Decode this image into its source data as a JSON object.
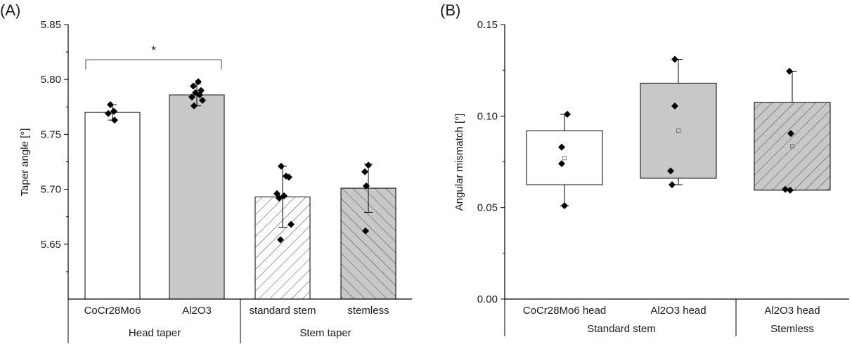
{
  "chart_data": [
    {
      "panel_label": "(A)",
      "type": "bar",
      "ylabel": "Taper angle [°]",
      "ylim": [
        5.6,
        5.85
      ],
      "yticks": [
        "5.65",
        "5.70",
        "5.75",
        "5.80",
        "5.85"
      ],
      "categories": [
        "CoCr28Mo6",
        "Al2O3",
        "standard stem",
        "stemless"
      ],
      "groups": [
        "Head taper",
        "Stem taper"
      ],
      "bars": [
        {
          "category": "CoCr28Mo6",
          "group": "Head taper",
          "value": 5.77,
          "sd": 0.007,
          "fill": "#ffffff",
          "pattern": "none",
          "points": [
            5.777,
            5.771,
            5.769,
            5.763
          ]
        },
        {
          "category": "Al2O3",
          "group": "Head taper",
          "value": 5.786,
          "sd": 0.01,
          "fill": "#c8c8c8",
          "pattern": "none",
          "points": [
            5.798,
            5.794,
            5.79,
            5.788,
            5.786,
            5.784,
            5.781,
            5.776
          ]
        },
        {
          "category": "standard stem",
          "group": "Stem taper",
          "value": 5.693,
          "sd": 0.028,
          "fill": "#ffffff",
          "pattern": "hatch-forward",
          "points": [
            5.721,
            5.712,
            5.711,
            5.696,
            5.694,
            5.692,
            5.668,
            5.654
          ]
        },
        {
          "category": "stemless",
          "group": "Stem taper",
          "value": 5.701,
          "sd": 0.022,
          "fill": "#c8c8c8",
          "pattern": "hatch-backward",
          "points": [
            5.722,
            5.716,
            5.703,
            5.662
          ]
        }
      ],
      "annotation": {
        "text": "*",
        "between": [
          "CoCr28Mo6",
          "Al2O3"
        ],
        "at": 5.818
      }
    },
    {
      "panel_label": "(B)",
      "type": "box",
      "ylabel": "Angular mismatch [°]",
      "ylim": [
        0,
        0.15
      ],
      "yticks": [
        "0.00",
        "0.05",
        "0.10",
        "0.15"
      ],
      "categories": [
        "CoCr28Mo6 head",
        "Al2O3 head",
        "Al2O3 head"
      ],
      "groups": [
        "Standard stem",
        "Stemless"
      ],
      "boxes": [
        {
          "category": "CoCr28Mo6 head",
          "group": "Standard stem",
          "q1": 0.0625,
          "q3": 0.092,
          "mean": 0.077,
          "whisker_low": 0.051,
          "whisker_high": 0.101,
          "fill": "#ffffff",
          "pattern": "none",
          "points": [
            0.101,
            0.083,
            0.074,
            0.051
          ]
        },
        {
          "category": "Al2O3 head",
          "group": "Standard stem",
          "q1": 0.066,
          "q3": 0.118,
          "mean": 0.092,
          "whisker_low": 0.0625,
          "whisker_high": 0.131,
          "fill": "#c8c8c8",
          "pattern": "none",
          "points": [
            0.131,
            0.1055,
            0.07,
            0.0625
          ]
        },
        {
          "category": "Al2O3 head",
          "group": "Stemless",
          "q1": 0.0595,
          "q3": 0.1075,
          "mean": 0.0835,
          "whisker_low": 0.0595,
          "whisker_high": 0.1245,
          "fill": "#c8c8c8",
          "pattern": "hatch-forward",
          "points": [
            0.1245,
            0.0905,
            0.06,
            0.0595
          ]
        }
      ]
    }
  ]
}
